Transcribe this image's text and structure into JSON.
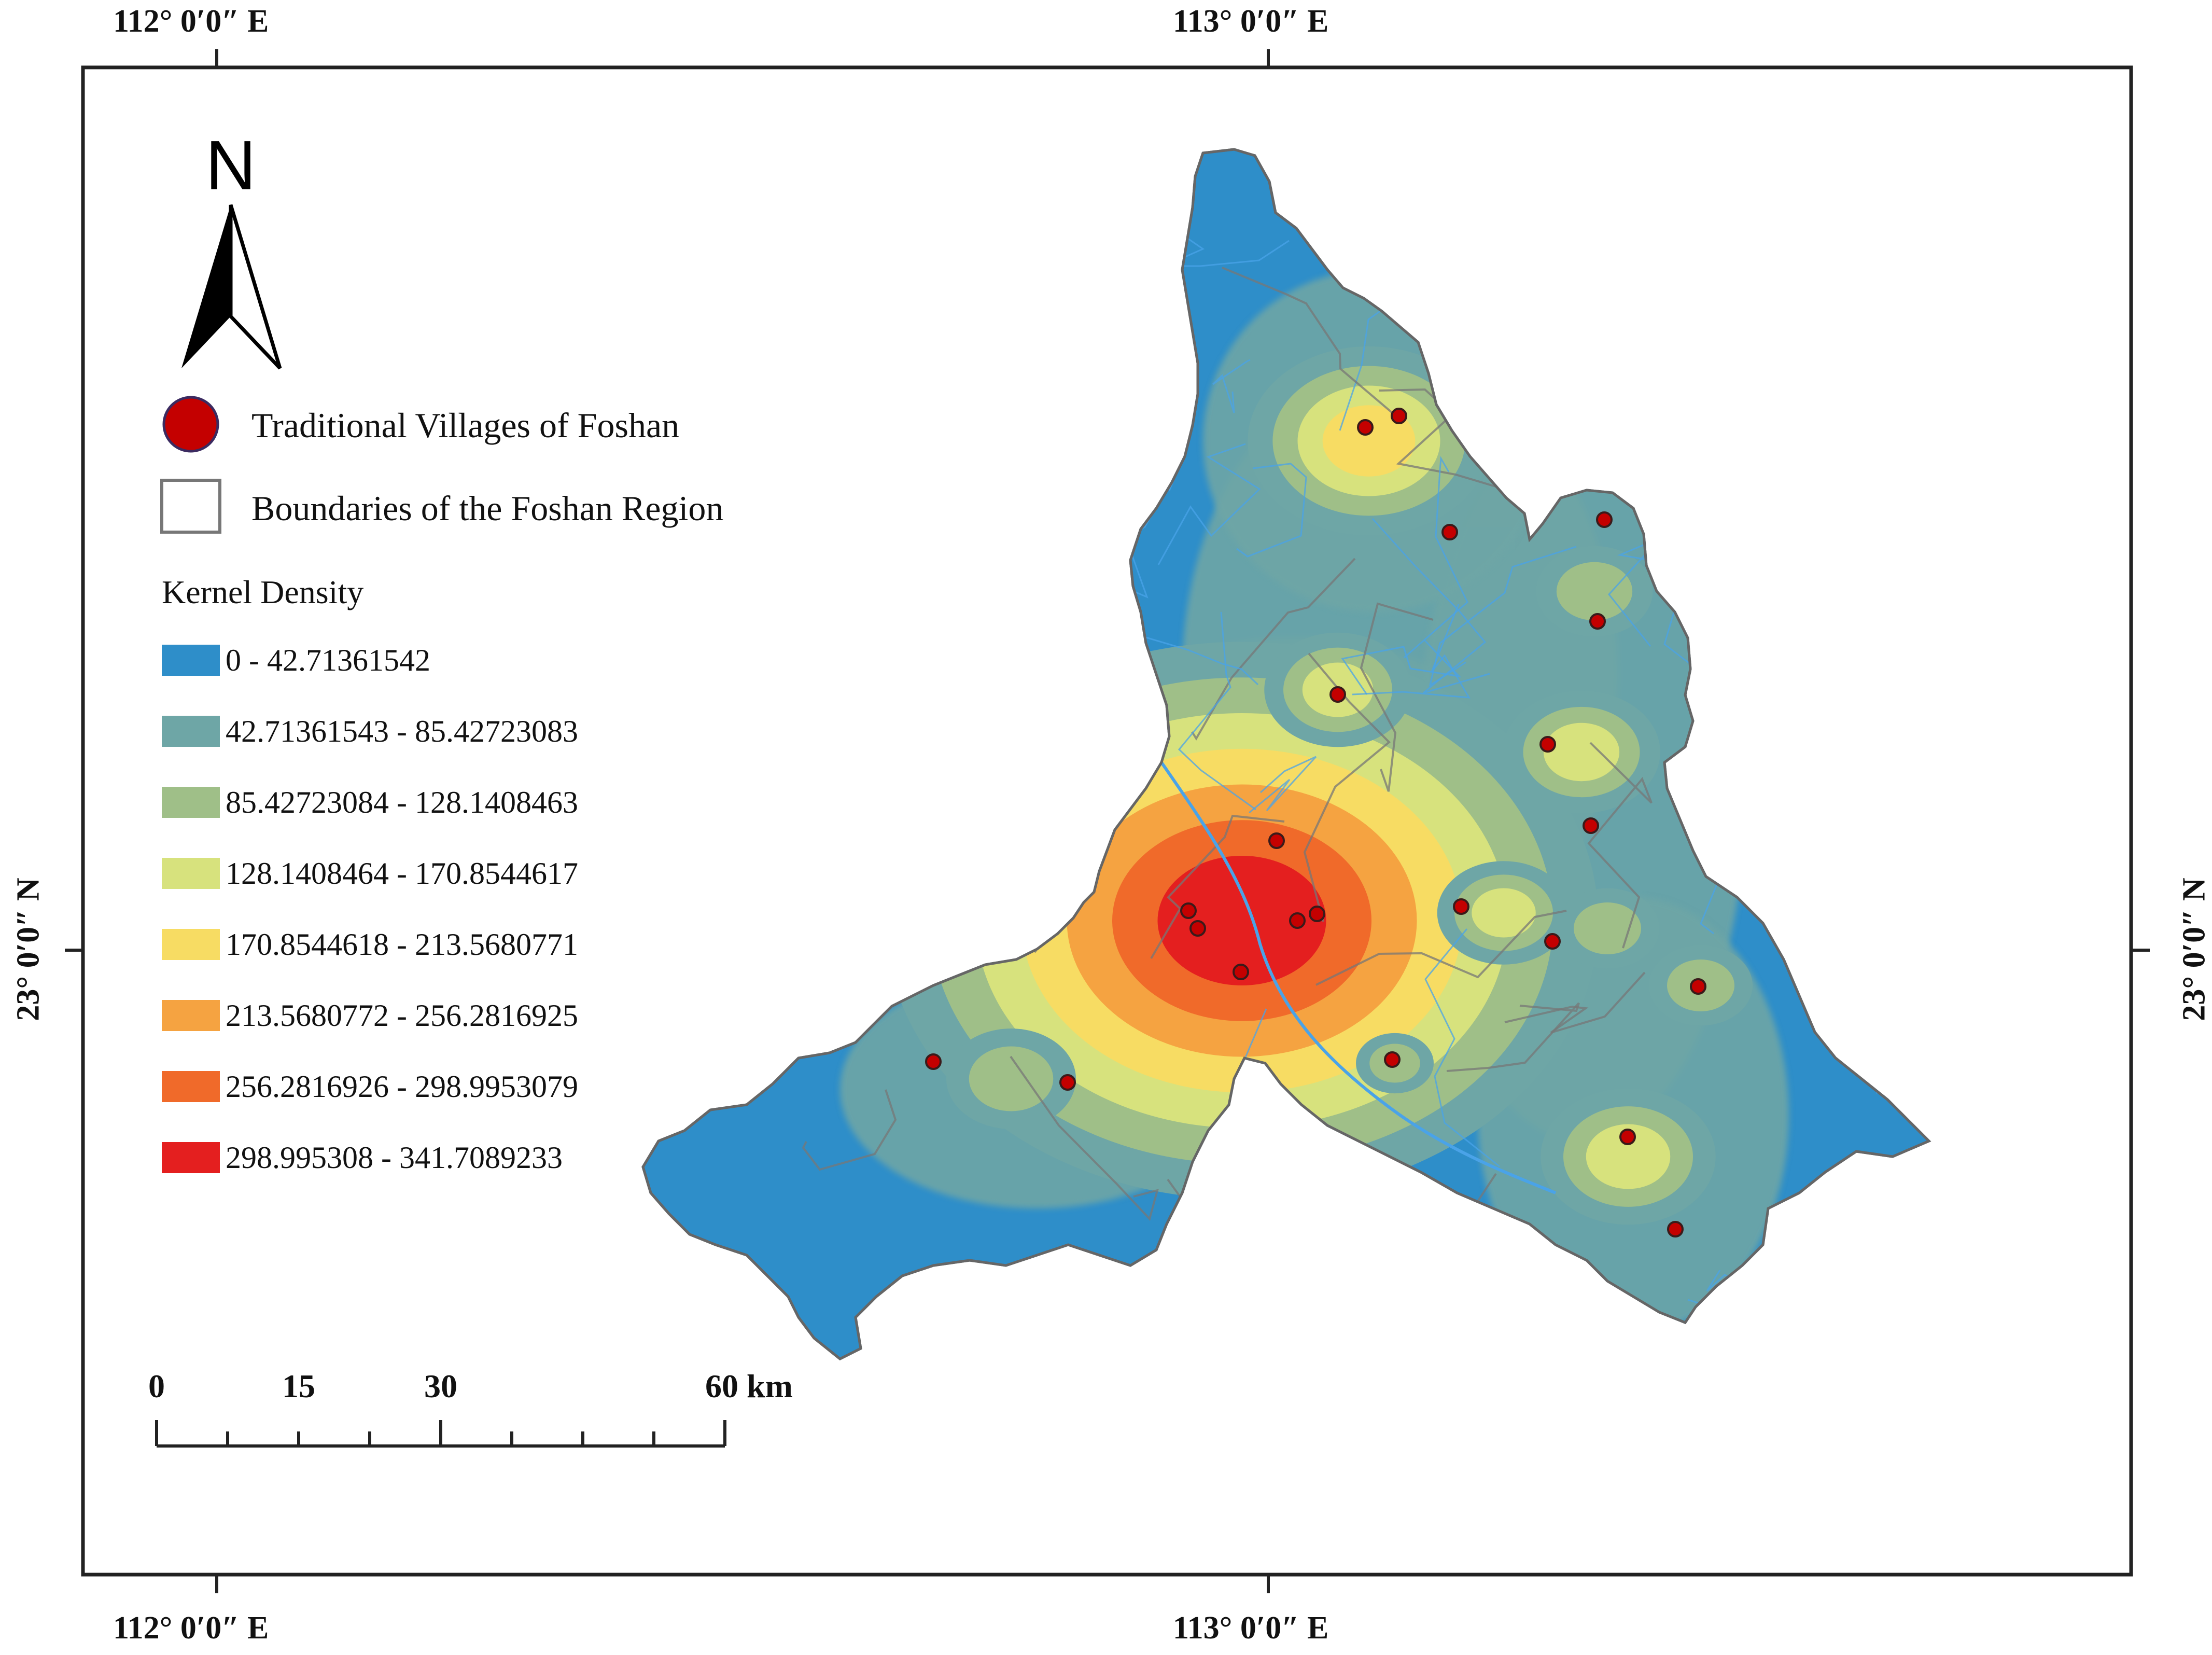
{
  "graticule": {
    "top_left": "112°  0′0″ E",
    "top_right": "113°  0′0″ E",
    "bottom_left": "112°  0′0″ E",
    "bottom_right": "113°  0′0″ E",
    "left": "23°  0′0″ N",
    "right": "23°  0′0″ N"
  },
  "north_arrow": {
    "label": "N"
  },
  "legend": {
    "villages_label": "Traditional Villages of Foshan",
    "boundary_label": "Boundaries of the Foshan Region",
    "density_title": "Kernel Density",
    "classes": [
      {
        "label": "0 - 42.71361542",
        "color": "#2e8ec9"
      },
      {
        "label": "42.71361543 - 85.42723083",
        "color": "#6ea6a6"
      },
      {
        "label": "85.42723084 - 128.1408463",
        "color": "#9fbf88"
      },
      {
        "label": "128.1408464 - 170.8544617",
        "color": "#d7e27d"
      },
      {
        "label": "170.8544618 - 213.5680771",
        "color": "#f7dc63"
      },
      {
        "label": "213.5680772 - 256.2816925",
        "color": "#f5a341"
      },
      {
        "label": "256.2816926 - 298.9953079",
        "color": "#f06a2a"
      },
      {
        "label": "298.995308 - 341.7089233",
        "color": "#e41f1f"
      }
    ]
  },
  "scale_bar": {
    "labels": [
      "0",
      "15",
      "30",
      "60 km"
    ]
  },
  "colors": {
    "village_fill": "#c40000",
    "village_stroke": "#3a1a1a",
    "boundary": "#777777",
    "river": "#4aa3e8"
  }
}
